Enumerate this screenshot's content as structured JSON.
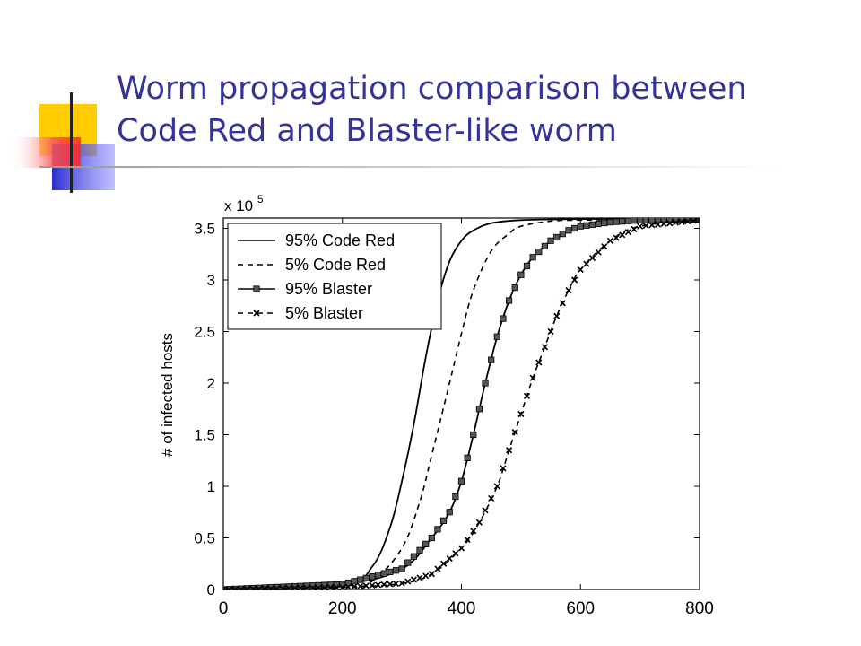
{
  "slide": {
    "title_line1": "Worm propagation comparison between",
    "title_line2": "Code Red and Blaster-like worm"
  },
  "colors": {
    "title": "#333399",
    "accent_yellow": "#ffcc00",
    "accent_blue": "#3333cc",
    "accent_red": "#ff3333"
  },
  "chart_data": {
    "type": "line",
    "title": "",
    "xlabel": "",
    "ylabel": "# of infected hosts",
    "y_multiplier": "x 10",
    "y_multiplier_exp": "5",
    "xlim": [
      0,
      800
    ],
    "ylim": [
      0,
      360000
    ],
    "xticks": [
      0,
      200,
      400,
      600,
      800
    ],
    "xtick_labels": [
      "0",
      "200",
      "400",
      "600",
      "800"
    ],
    "yticks": [
      0,
      50000,
      100000,
      150000,
      200000,
      250000,
      300000,
      350000
    ],
    "ytick_labels": [
      "0",
      "0.5",
      "1",
      "1.5",
      "2",
      "2.5",
      "3",
      "3.5"
    ],
    "grid": false,
    "legend_position": "top-left",
    "series": [
      {
        "name": "95% Code Red",
        "style": "solid",
        "marker": "none",
        "x": [
          0,
          200,
          250,
          280,
          300,
          320,
          340,
          360,
          380,
          400,
          420,
          450,
          500,
          600,
          800
        ],
        "values": [
          0,
          4000,
          22000,
          60000,
          105000,
          160000,
          225000,
          280000,
          318000,
          338000,
          348000,
          355000,
          358000,
          359000,
          360000
        ]
      },
      {
        "name": "5% Code Red",
        "style": "dashed",
        "marker": "none",
        "x": [
          0,
          200,
          250,
          300,
          330,
          350,
          380,
          400,
          420,
          450,
          480,
          500,
          550,
          600,
          800
        ],
        "values": [
          0,
          2000,
          8000,
          40000,
          85000,
          130000,
          200000,
          248000,
          290000,
          328000,
          345000,
          352000,
          357000,
          358000,
          360000
        ]
      },
      {
        "name": "95% Blaster",
        "style": "solid",
        "marker": "square",
        "x": [
          0,
          200,
          300,
          350,
          380,
          400,
          420,
          440,
          460,
          480,
          500,
          520,
          550,
          580,
          600,
          650,
          700,
          800
        ],
        "values": [
          0,
          5000,
          20000,
          50000,
          75000,
          105000,
          150000,
          200000,
          245000,
          280000,
          305000,
          322000,
          338000,
          348000,
          352000,
          356000,
          358000,
          359000
        ]
      },
      {
        "name": "5% Blaster",
        "style": "dashed",
        "marker": "x",
        "x": [
          0,
          200,
          300,
          350,
          400,
          430,
          460,
          480,
          500,
          520,
          540,
          560,
          580,
          600,
          650,
          700,
          800
        ],
        "values": [
          0,
          2000,
          6000,
          15000,
          40000,
          65000,
          100000,
          135000,
          170000,
          205000,
          235000,
          265000,
          290000,
          310000,
          338000,
          352000,
          358000
        ]
      }
    ]
  }
}
